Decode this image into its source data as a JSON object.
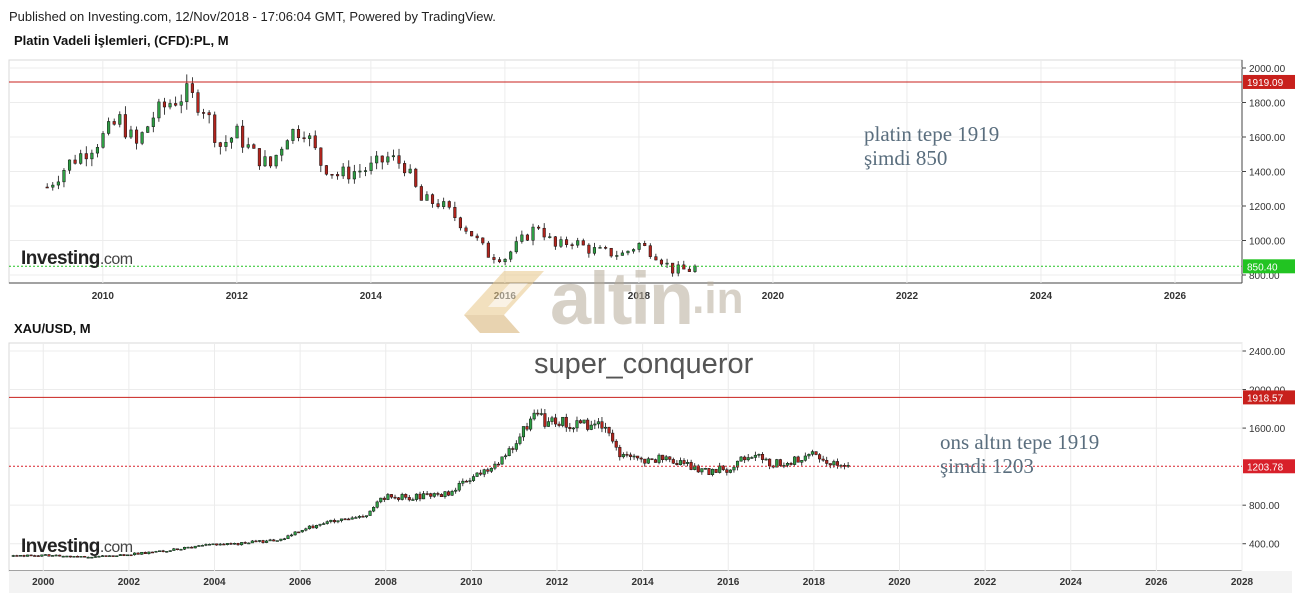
{
  "header": {
    "published": "Published on Investing.com, 12/Nov/2018 - 17:06:04 GMT, Powered by TradingView."
  },
  "logo": {
    "brand": "Investing",
    "suffix": ".com"
  },
  "watermark": {
    "text": "altin",
    "suffix": ".in"
  },
  "author": "super_conqueror",
  "colors": {
    "up": "#2e9e44",
    "down": "#b2241d",
    "top_line": "#c8201c",
    "price_green": "#22c422",
    "price_red": "#d8202a"
  },
  "chart_data": [
    {
      "type": "candlestick",
      "title": "Platin Vadeli İşlemleri, (CFD):PL, M",
      "x_ticks": [
        "2010",
        "2012",
        "2014",
        "2016",
        "2018",
        "2020",
        "2022",
        "2024",
        "2026"
      ],
      "y_ticks": [
        "2000.00",
        "1800.00",
        "1600.00",
        "1400.00",
        "1200.00",
        "1000.00",
        "800.00"
      ],
      "ylim": [
        800,
        2000
      ],
      "xlim": [
        2008.6,
        2027.0
      ],
      "grid": true,
      "series": {
        "t": [
          2009.17,
          2009.5,
          2009.75,
          2010.0,
          2010.25,
          2010.5,
          2010.75,
          2011.0,
          2011.25,
          2011.5,
          2011.75,
          2012.0,
          2012.25,
          2012.5,
          2012.75,
          2013.0,
          2013.25,
          2013.5,
          2013.75,
          2014.0,
          2014.25,
          2014.5,
          2014.75,
          2015.0,
          2015.25,
          2015.5,
          2015.75,
          2016.0,
          2016.25,
          2016.5,
          2016.75,
          2017.0,
          2017.25,
          2017.5,
          2017.75,
          2018.0,
          2018.25,
          2018.5,
          2018.75,
          2018.87
        ],
        "values": [
          1310,
          1450,
          1520,
          1600,
          1700,
          1550,
          1720,
          1800,
          1850,
          1780,
          1550,
          1620,
          1500,
          1430,
          1620,
          1650,
          1450,
          1380,
          1400,
          1420,
          1480,
          1440,
          1230,
          1220,
          1140,
          1040,
          920,
          900,
          1000,
          1090,
          960,
          1000,
          950,
          930,
          920,
          980,
          920,
          830,
          830,
          850
        ]
      },
      "lines": [
        {
          "label": "1919.09",
          "value": 1919.09,
          "style": "solid",
          "color": "#c8201c"
        },
        {
          "label": "850.40",
          "value": 850.4,
          "style": "dotted",
          "color": "#22c422"
        }
      ],
      "annotation": [
        "platin tepe 1919",
        "şimdi 850"
      ]
    },
    {
      "type": "candlestick",
      "title": "XAU/USD, M",
      "x_ticks": [
        "2000",
        "2002",
        "2004",
        "2006",
        "2008",
        "2010",
        "2012",
        "2014",
        "2016",
        "2018",
        "2020",
        "2022",
        "2024",
        "2026",
        "2028"
      ],
      "y_ticks": [
        "2400.00",
        "2000.00",
        "1600.00",
        "800.00",
        "400.00"
      ],
      "ylim": [
        200,
        2400
      ],
      "xlim": [
        1999.2,
        2028.0
      ],
      "grid": true,
      "series": {
        "t": [
          1999.3,
          2000.0,
          2000.5,
          2001.0,
          2001.5,
          2002.0,
          2002.5,
          2003.0,
          2003.5,
          2004.0,
          2004.5,
          2005.0,
          2005.5,
          2006.0,
          2006.5,
          2007.0,
          2007.5,
          2008.0,
          2008.5,
          2009.0,
          2009.5,
          2010.0,
          2010.5,
          2011.0,
          2011.5,
          2011.75,
          2012.0,
          2012.5,
          2013.0,
          2013.5,
          2014.0,
          2014.5,
          2015.0,
          2015.5,
          2016.0,
          2016.5,
          2017.0,
          2017.5,
          2018.0,
          2018.5,
          2018.87
        ],
        "values": [
          270,
          280,
          270,
          265,
          270,
          290,
          310,
          340,
          360,
          400,
          400,
          420,
          430,
          530,
          620,
          640,
          680,
          900,
          880,
          900,
          930,
          1080,
          1200,
          1400,
          1800,
          1650,
          1680,
          1620,
          1650,
          1300,
          1250,
          1300,
          1220,
          1150,
          1180,
          1340,
          1230,
          1260,
          1320,
          1230,
          1210
        ]
      },
      "lines": [
        {
          "label": "1918.57",
          "value": 1918.57,
          "style": "solid",
          "color": "#c8201c"
        },
        {
          "label": "1203.78",
          "value": 1203.78,
          "style": "dotted",
          "color": "#d8202a"
        }
      ],
      "annotation": [
        "ons altın tepe 1919",
        "şimdi 1203"
      ]
    }
  ]
}
